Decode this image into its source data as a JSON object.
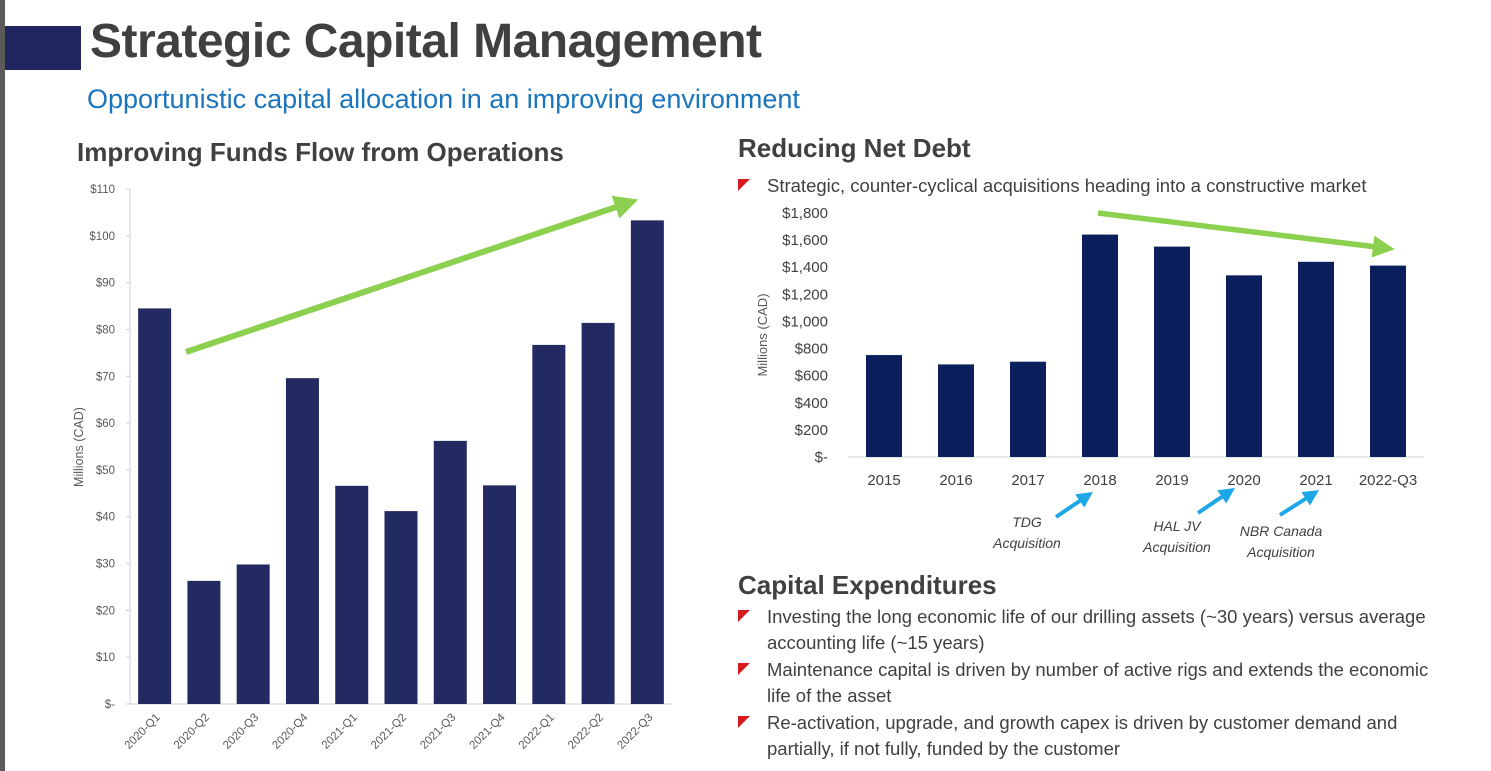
{
  "header": {
    "title": "Strategic Capital Management",
    "subtitle": "Opportunistic capital allocation in an improving environment"
  },
  "funds_flow": {
    "heading": "Improving Funds Flow from Operations"
  },
  "net_debt": {
    "heading": "Reducing Net Debt",
    "bullet": "Strategic, counter-cyclical acquisitions heading into a constructive market",
    "annotations": [
      {
        "category": "2018",
        "label_lines": [
          "TDG",
          "Acquisition"
        ]
      },
      {
        "category": "2020",
        "label_lines": [
          "HAL JV",
          "Acquisition"
        ]
      },
      {
        "category": "2021",
        "label_lines": [
          "NBR Canada",
          "Acquisition"
        ]
      }
    ]
  },
  "capex": {
    "heading": "Capital Expenditures",
    "bullets": [
      "Investing the long economic life of our drilling assets (~30 years) versus average accounting life (~15 years)",
      "Maintenance capital is driven by number of active rigs and extends the economic life of the asset",
      "Re-activation, upgrade, and growth capex is driven by customer demand and partially, if not fully, funded by the customer"
    ]
  },
  "colors": {
    "funds_bar": "#232a62",
    "debt_bar": "#0b1f5c",
    "trend_arrow": "#8bd04e",
    "acquisition_arrow": "#1ea7e6",
    "bullet_marker": "#d71920",
    "subtitle": "#1b75bc"
  },
  "chart_data": [
    {
      "type": "bar",
      "title": "Improving Funds Flow from Operations",
      "ylabel": "Millions (CAD)",
      "categories": [
        "2020-Q1",
        "2020-Q2",
        "2020-Q3",
        "2020-Q4",
        "2021-Q1",
        "2021-Q2",
        "2021-Q3",
        "2021-Q4",
        "2022-Q1",
        "2022-Q2",
        "2022-Q3"
      ],
      "values": [
        84.5,
        26.3,
        29.8,
        69.6,
        46.6,
        41.2,
        56.2,
        46.7,
        76.7,
        81.4,
        103.3
      ],
      "ylim": [
        0,
        110
      ],
      "yticks": [
        "$-",
        "$10",
        "$20",
        "$30",
        "$40",
        "$50",
        "$60",
        "$70",
        "$80",
        "$90",
        "$100",
        "$110"
      ],
      "trend": "increasing",
      "grid": false
    },
    {
      "type": "bar",
      "title": "Reducing Net Debt",
      "ylabel": "Millions (CAD)",
      "categories": [
        "2015",
        "2016",
        "2017",
        "2018",
        "2019",
        "2020",
        "2021",
        "2022-Q3"
      ],
      "values": [
        752,
        683,
        703,
        1641,
        1552,
        1340,
        1440,
        1412
      ],
      "ylim": [
        0,
        1800
      ],
      "yticks": [
        "$-",
        "$200",
        "$400",
        "$600",
        "$800",
        "$1,000",
        "$1,200",
        "$1,400",
        "$1,600",
        "$1,800"
      ],
      "trend": "decreasing",
      "grid": false
    }
  ]
}
